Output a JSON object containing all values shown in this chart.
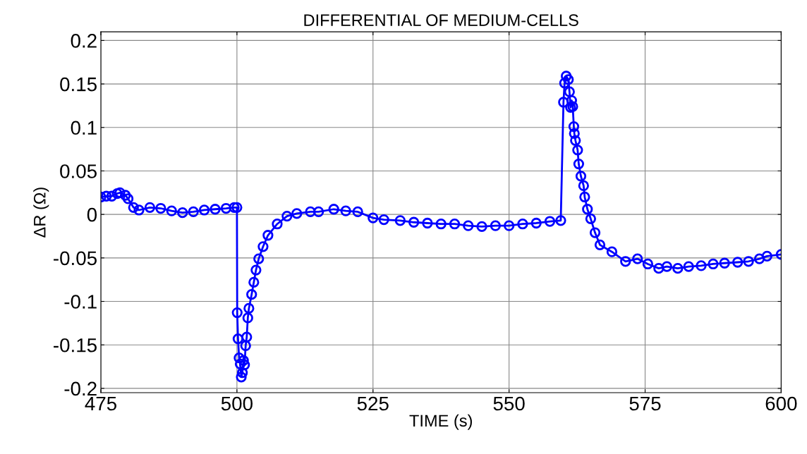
{
  "chart_data": {
    "type": "line",
    "title": "DIFFERENTIAL OF MEDIUM-CELLS",
    "xlabel": "TIME (s)",
    "ylabel": "ΔR (Ω)",
    "series": [
      {
        "color": "#0000ff",
        "x": [
          475,
          476,
          477,
          478,
          478.5,
          479.5,
          480,
          481,
          482,
          484,
          486,
          488,
          490,
          492,
          494,
          496,
          498,
          499.5,
          500.0,
          500.05,
          500.2,
          500.4,
          500.6,
          500.8,
          501.0,
          501.2,
          501.4,
          501.6,
          501.8,
          502.0,
          502.2,
          502.7,
          503.1,
          503.5,
          504.0,
          504.8,
          505.7,
          507.4,
          509.2,
          511,
          513.5,
          515,
          517.8,
          520,
          522.2,
          525,
          527,
          530,
          532.5,
          535,
          537.5,
          540,
          542.5,
          545,
          547.5,
          550,
          552.5,
          555,
          557.5,
          559.5,
          560.0,
          560.2,
          560.5,
          560.9,
          561.1,
          561.3,
          561.5,
          561.7,
          561.9,
          562.0,
          562.2,
          562.6,
          562.8,
          563.2,
          563.7,
          563.9,
          564.4,
          565.0,
          565.8,
          566.7,
          568.9,
          571.4,
          573.6,
          575.5,
          577.5,
          579,
          581.0,
          583,
          585.3,
          587.5,
          589.6,
          592,
          594.0,
          596,
          597.4,
          600
        ],
        "values": [
          0.02,
          0.021,
          0.021,
          0.024,
          0.025,
          0.022,
          0.018,
          0.008,
          0.005,
          0.008,
          0.007,
          0.004,
          0.002,
          0.003,
          0.005,
          0.006,
          0.007,
          0.008,
          0.008,
          -0.113,
          -0.143,
          -0.165,
          -0.172,
          -0.187,
          -0.182,
          -0.168,
          -0.173,
          -0.151,
          -0.141,
          -0.119,
          -0.108,
          -0.092,
          -0.078,
          -0.064,
          -0.051,
          -0.037,
          -0.024,
          -0.011,
          -0.002,
          0.001,
          0.003,
          0.003,
          0.006,
          0.004,
          0.003,
          -0.004,
          -0.006,
          -0.007,
          -0.009,
          -0.01,
          -0.011,
          -0.011,
          -0.013,
          -0.014,
          -0.013,
          -0.013,
          -0.011,
          -0.01,
          -0.008,
          -0.007,
          0.129,
          0.151,
          0.159,
          0.155,
          0.141,
          0.123,
          0.131,
          0.124,
          0.101,
          0.093,
          0.085,
          0.074,
          0.058,
          0.044,
          0.033,
          0.02,
          0.006,
          -0.005,
          -0.021,
          -0.035,
          -0.043,
          -0.054,
          -0.051,
          -0.057,
          -0.062,
          -0.06,
          -0.062,
          -0.06,
          -0.059,
          -0.057,
          -0.056,
          -0.055,
          -0.054,
          -0.051,
          -0.048,
          -0.046
        ]
      }
    ],
    "xlim": [
      475,
      600
    ],
    "xticks": [
      475,
      500,
      525,
      550,
      575,
      600
    ],
    "ylim": [
      -0.205,
      0.21
    ],
    "yticks": [
      -0.2,
      -0.15,
      -0.1,
      -0.05,
      0,
      0.05,
      0.1,
      0.15,
      0.2
    ],
    "grid": true,
    "marker": "circle",
    "line_style": "solid"
  }
}
